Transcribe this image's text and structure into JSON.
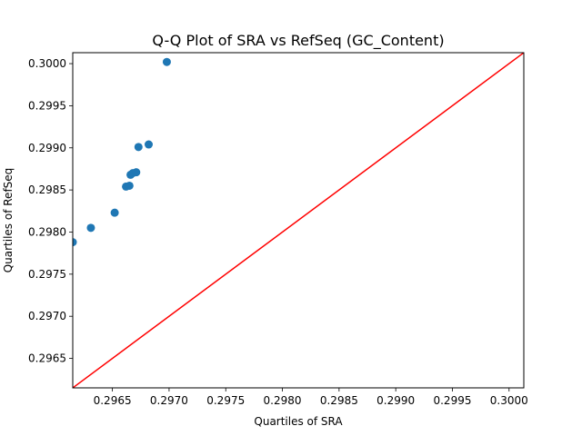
{
  "chart_data": {
    "type": "scatter",
    "title": "Q-Q Plot of SRA vs RefSeq (GC_Content)",
    "xlabel": "Quartiles of SRA",
    "ylabel": "Quartiles of RefSeq",
    "xlim": [
      0.29615,
      0.30013
    ],
    "ylim": [
      0.29615,
      0.30013
    ],
    "x_ticks": [
      0.2965,
      0.297,
      0.2975,
      0.298,
      0.2985,
      0.299,
      0.2995,
      0.3
    ],
    "x_tick_labels": [
      "0.2965",
      "0.2970",
      "0.2975",
      "0.2980",
      "0.2985",
      "0.2990",
      "0.2995",
      "0.3000"
    ],
    "y_ticks": [
      0.2965,
      0.297,
      0.2975,
      0.298,
      0.2985,
      0.299,
      0.2995,
      0.3
    ],
    "y_tick_labels": [
      "0.2965",
      "0.2970",
      "0.2975",
      "0.2980",
      "0.2985",
      "0.2990",
      "0.2995",
      "0.3000"
    ],
    "grid": false,
    "marker_color": "#1f77b4",
    "reference_line_color": "#ff0000",
    "reference_line": "y = x",
    "points": [
      {
        "x": 0.29615,
        "y": 0.29788
      },
      {
        "x": 0.29631,
        "y": 0.29805
      },
      {
        "x": 0.29652,
        "y": 0.29823
      },
      {
        "x": 0.29662,
        "y": 0.29854
      },
      {
        "x": 0.29665,
        "y": 0.29855
      },
      {
        "x": 0.29666,
        "y": 0.29868
      },
      {
        "x": 0.29668,
        "y": 0.2987
      },
      {
        "x": 0.29671,
        "y": 0.29871
      },
      {
        "x": 0.29673,
        "y": 0.29901
      },
      {
        "x": 0.29682,
        "y": 0.29904
      },
      {
        "x": 0.29698,
        "y": 0.30002
      }
    ]
  }
}
